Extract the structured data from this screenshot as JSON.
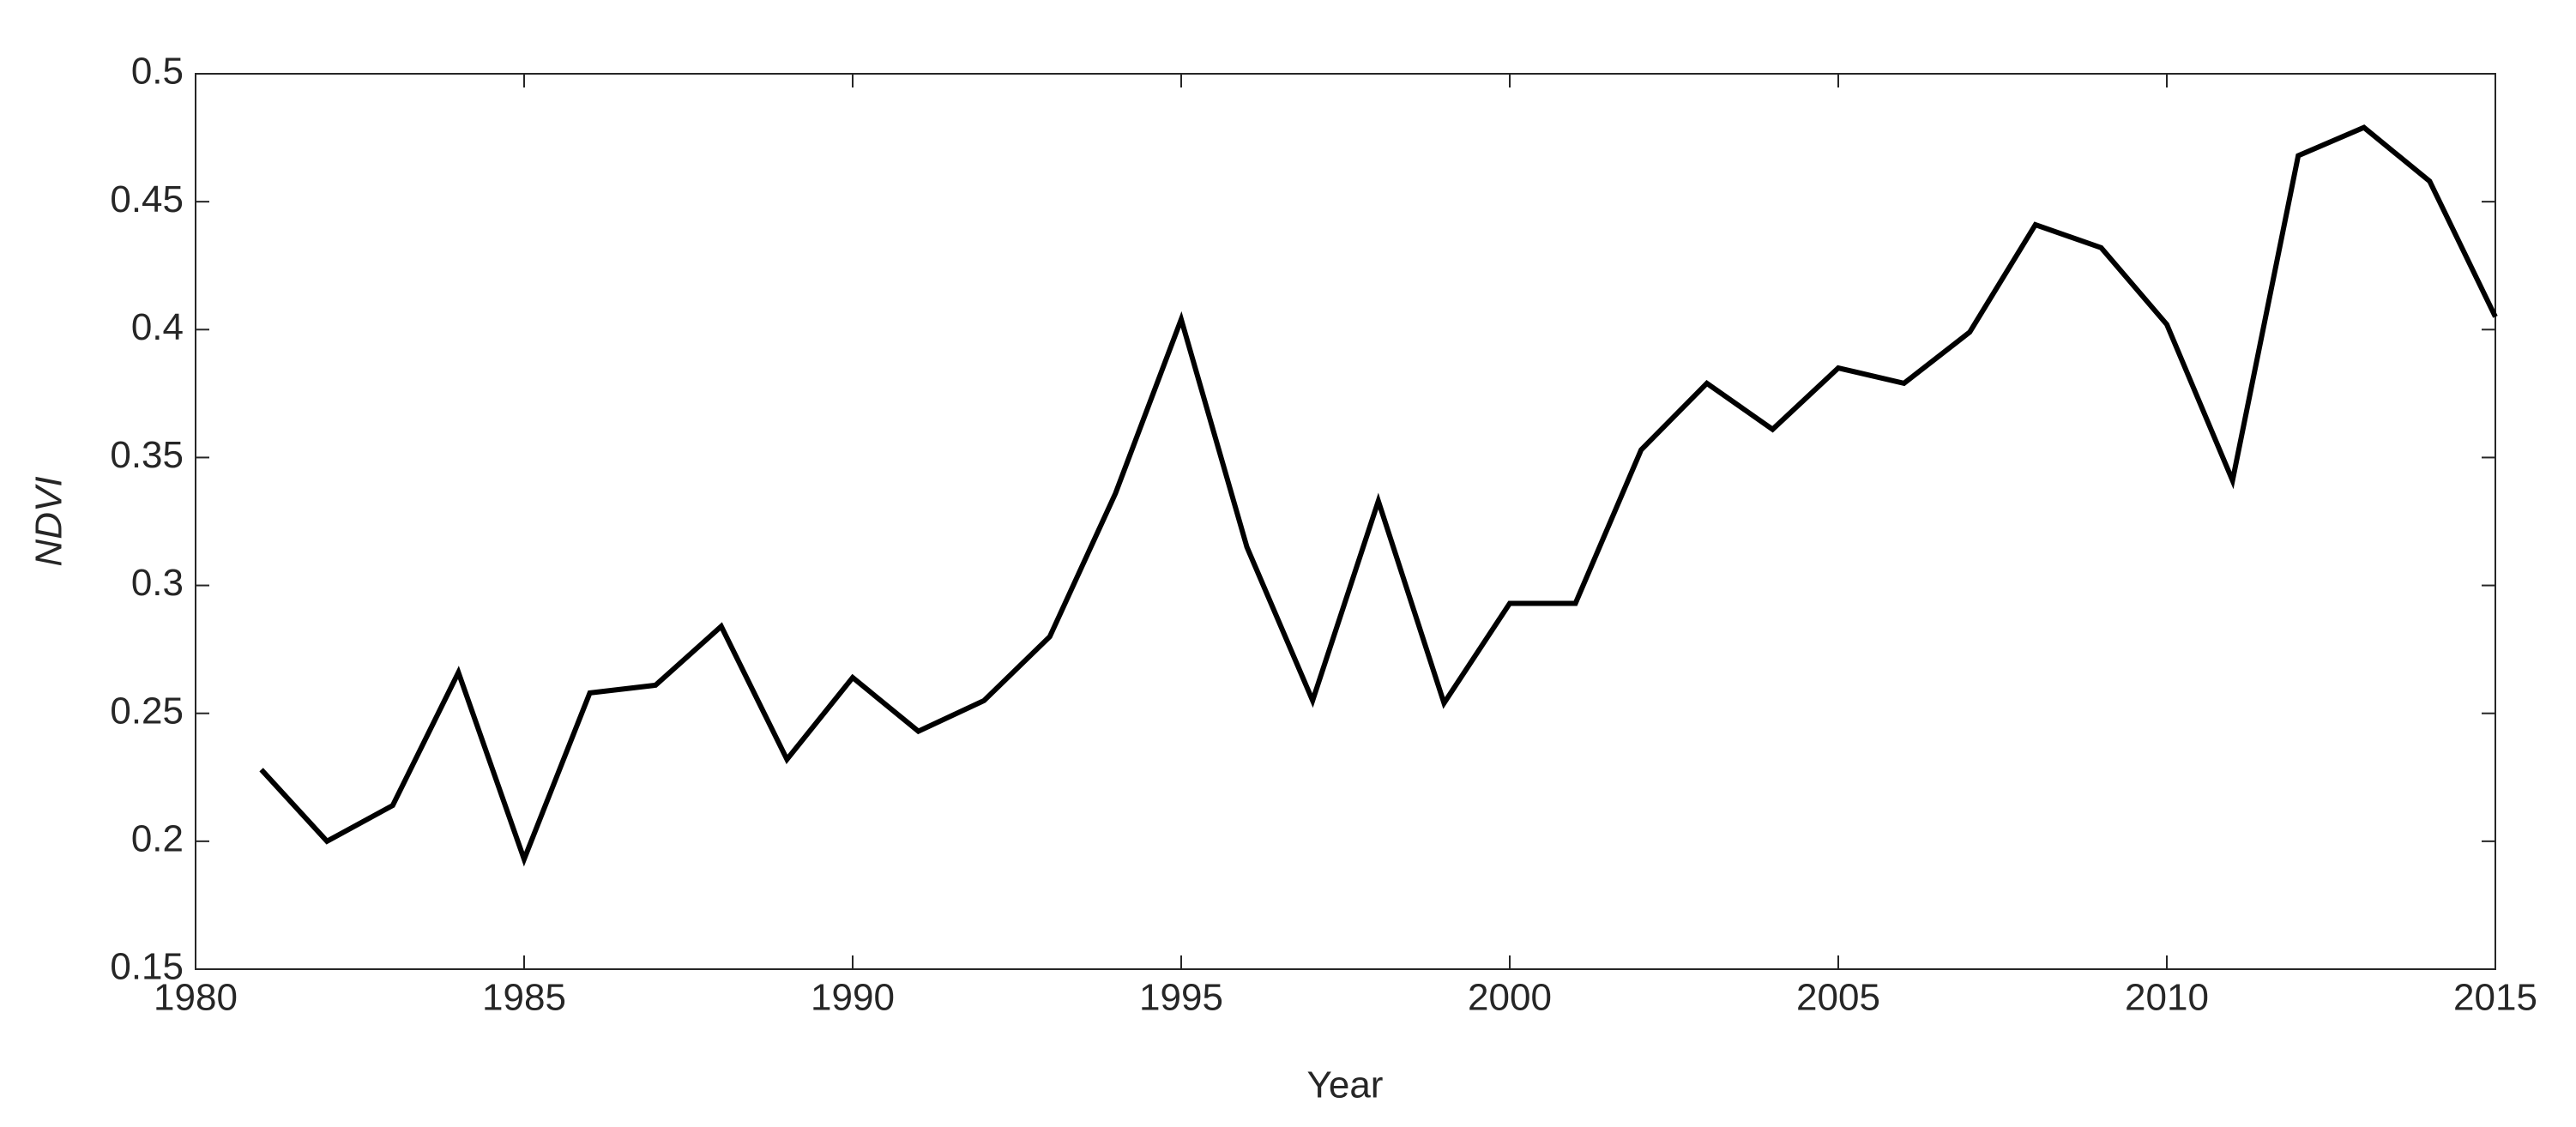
{
  "chart_data": {
    "type": "line",
    "xlabel": "Year",
    "ylabel": "NDVI",
    "x": [
      1981,
      1982,
      1983,
      1984,
      1985,
      1986,
      1987,
      1988,
      1989,
      1990,
      1991,
      1992,
      1993,
      1994,
      1995,
      1996,
      1997,
      1998,
      1999,
      2000,
      2001,
      2002,
      2003,
      2004,
      2005,
      2006,
      2007,
      2008,
      2009,
      2010,
      2011,
      2012,
      2013,
      2014,
      2015
    ],
    "series": [
      {
        "color": "#000000",
        "values": [
          0.228,
          0.2,
          0.214,
          0.266,
          0.193,
          0.258,
          0.261,
          0.284,
          0.232,
          0.264,
          0.243,
          0.255,
          0.28,
          0.336,
          0.404,
          0.315,
          0.255,
          0.333,
          0.254,
          0.293,
          0.293,
          0.353,
          0.379,
          0.361,
          0.385,
          0.379,
          0.399,
          0.441,
          0.432,
          0.402,
          0.341,
          0.468,
          0.479,
          0.458,
          0.405
        ]
      }
    ],
    "xlim": [
      1980,
      2015
    ],
    "xticks": [
      1980,
      1985,
      1990,
      1995,
      2000,
      2005,
      2010,
      2015
    ],
    "ylim": [
      0.15,
      0.5
    ],
    "yticks": [
      0.15,
      0.2,
      0.25,
      0.3,
      0.35,
      0.4,
      0.45,
      0.5
    ],
    "grid": false
  }
}
